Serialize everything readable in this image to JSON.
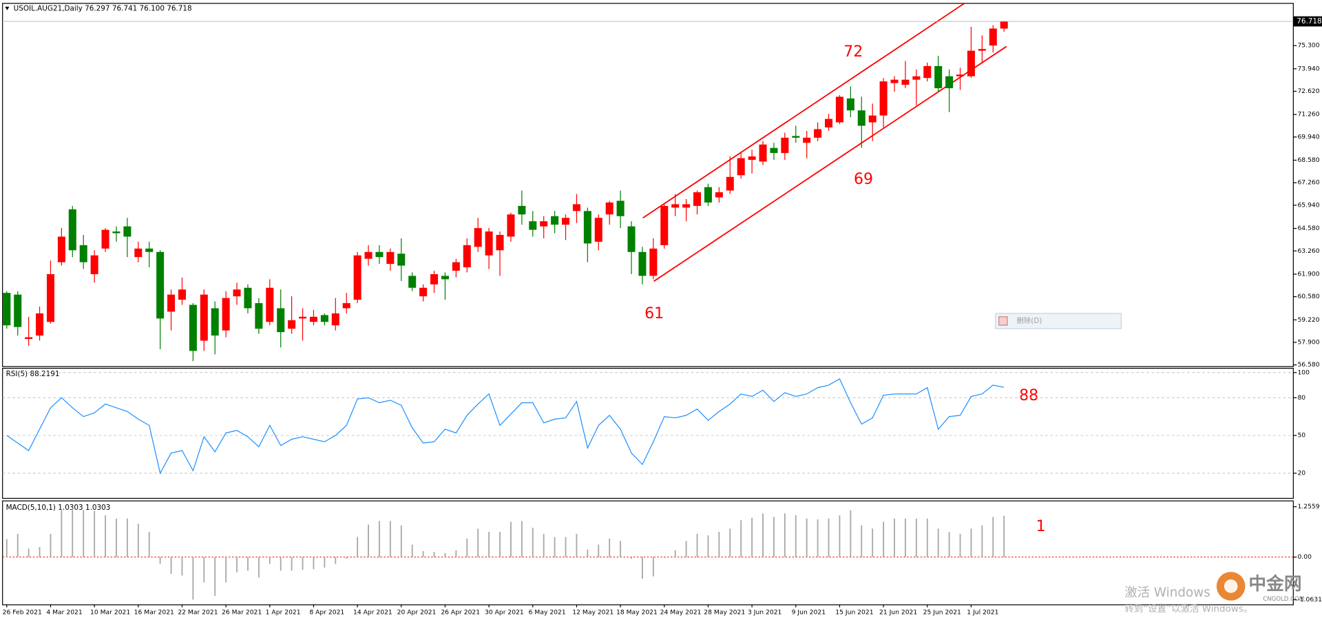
{
  "chart_data": [
    {
      "type": "candlestick",
      "title": "USOIL.AUG21,Daily  76.297 76.741 76.100 76.718",
      "categories": [
        "26 Feb 2021",
        null,
        null,
        null,
        "4 Mar 2021",
        null,
        null,
        null,
        "10 Mar 2021",
        null,
        null,
        null,
        "16 Mar 2021",
        null,
        null,
        null,
        "22 Mar 2021",
        null,
        null,
        null,
        "26 Mar 2021",
        null,
        null,
        null,
        "1 Apr 2021",
        null,
        null,
        null,
        "8 Apr 2021",
        null,
        null,
        null,
        "14 Apr 2021",
        null,
        null,
        null,
        "20 Apr 2021",
        null,
        null,
        null,
        "26 Apr 2021",
        null,
        null,
        null,
        "30 Apr 2021",
        null,
        null,
        null,
        "6 May 2021",
        null,
        null,
        null,
        "12 May 2021",
        null,
        null,
        null,
        "18 May 2021",
        null,
        null,
        null,
        "24 May 2021",
        null,
        null,
        null,
        "28 May 2021",
        null,
        null,
        null,
        "3 Jun 2021",
        null,
        null,
        null,
        "9 Jun 2021",
        null,
        null,
        null,
        "15 Jun 2021",
        null,
        null,
        null,
        "21 Jun 2021",
        null,
        null,
        null,
        "25 Jun 2021",
        null,
        null,
        null,
        "1 Jul 2021",
        null,
        null,
        null
      ],
      "open": [
        60.8,
        60.7,
        58.1,
        58.3,
        59.1,
        62.6,
        65.7,
        63.6,
        61.9,
        63.4,
        64.4,
        64.7,
        62.9,
        63.4,
        63.2,
        59.7,
        60.4,
        60.1,
        58.0,
        59.9,
        58.6,
        60.6,
        61.1,
        60.2,
        59.1,
        59.9,
        58.7,
        59.3,
        59.1,
        59.5,
        58.9,
        59.9,
        60.4,
        62.8,
        63.2,
        62.5,
        63.1,
        61.8,
        60.6,
        61.3,
        61.8,
        62.1,
        62.3,
        63.5,
        63.0,
        63.3,
        64.1,
        65.9,
        65.0,
        64.7,
        65.3,
        64.8,
        65.6,
        65.6,
        63.8,
        65.4,
        66.2,
        64.7,
        63.2,
        61.8,
        63.6,
        65.8,
        65.8,
        65.9,
        67.0,
        66.4,
        66.8,
        67.7,
        68.6,
        68.5,
        69.3,
        69.0,
        70.0,
        69.6,
        69.9,
        70.5,
        70.8,
        72.2,
        71.5,
        70.8,
        71.2,
        73.1,
        73.0,
        73.3,
        73.4,
        74.1,
        73.5,
        73.5,
        73.5,
        75.0,
        75.3,
        76.297
      ],
      "high": [
        60.9,
        60.9,
        59.4,
        60.0,
        62.7,
        64.6,
        65.9,
        64.2,
        63.3,
        64.6,
        64.7,
        65.2,
        63.8,
        63.8,
        63.3,
        61.0,
        61.7,
        60.2,
        61.0,
        60.3,
        60.9,
        61.4,
        61.3,
        60.5,
        61.6,
        61.0,
        60.6,
        59.9,
        59.8,
        59.6,
        60.5,
        60.8,
        63.2,
        63.6,
        63.6,
        63.4,
        64.0,
        62.0,
        61.3,
        62.1,
        62.0,
        62.8,
        64.0,
        65.2,
        64.6,
        64.4,
        65.5,
        66.8,
        65.6,
        65.3,
        65.6,
        65.4,
        66.6,
        65.8,
        65.4,
        66.2,
        66.8,
        65.0,
        63.5,
        64.0,
        66.0,
        66.6,
        66.3,
        66.8,
        67.2,
        67.0,
        68.8,
        69.0,
        69.2,
        69.7,
        69.6,
        70.2,
        70.6,
        70.3,
        70.8,
        71.3,
        72.4,
        72.9,
        72.3,
        71.9,
        73.4,
        73.5,
        74.4,
        73.9,
        74.3,
        74.7,
        73.9,
        74.0,
        76.4,
        75.9,
        76.5,
        76.741
      ],
      "low": [
        58.7,
        58.3,
        57.7,
        58.0,
        59.0,
        62.4,
        62.9,
        62.2,
        61.4,
        63.2,
        63.8,
        62.9,
        62.6,
        62.3,
        57.5,
        58.6,
        60.1,
        56.8,
        57.4,
        57.2,
        58.2,
        60.1,
        59.6,
        58.4,
        58.9,
        57.6,
        58.4,
        58.0,
        58.9,
        58.9,
        58.6,
        59.6,
        60.2,
        62.4,
        62.5,
        62.1,
        61.5,
        60.9,
        60.3,
        60.8,
        60.4,
        61.7,
        62.0,
        63.2,
        62.2,
        61.8,
        63.8,
        64.8,
        64.1,
        64.0,
        64.3,
        63.9,
        64.9,
        62.6,
        63.3,
        64.8,
        64.6,
        61.9,
        61.3,
        61.6,
        63.4,
        65.3,
        65.0,
        65.4,
        65.9,
        66.1,
        66.6,
        67.5,
        67.8,
        68.3,
        68.6,
        68.6,
        69.6,
        68.7,
        69.7,
        70.3,
        70.7,
        71.1,
        69.3,
        69.7,
        70.5,
        72.6,
        72.8,
        71.8,
        73.2,
        72.6,
        71.4,
        72.7,
        73.4,
        74.3,
        74.9,
        76.1
      ],
      "close": [
        58.9,
        58.8,
        58.2,
        59.6,
        61.9,
        64.1,
        63.3,
        62.6,
        63.0,
        64.5,
        64.3,
        64.1,
        63.4,
        63.2,
        59.3,
        60.7,
        61.0,
        57.4,
        60.7,
        58.3,
        60.5,
        61.0,
        59.9,
        58.7,
        61.1,
        58.5,
        59.2,
        59.4,
        59.4,
        59.1,
        59.6,
        60.2,
        63.0,
        63.2,
        62.9,
        63.2,
        62.4,
        61.1,
        61.1,
        61.9,
        61.6,
        62.6,
        63.6,
        64.6,
        64.4,
        64.2,
        65.4,
        65.4,
        64.5,
        65.0,
        64.8,
        65.2,
        66.0,
        63.7,
        65.2,
        66.1,
        65.3,
        63.2,
        61.8,
        63.4,
        65.9,
        66.0,
        66.0,
        66.7,
        66.1,
        66.7,
        67.6,
        68.7,
        68.8,
        69.5,
        69.0,
        69.9,
        69.9,
        69.9,
        70.4,
        71.0,
        72.3,
        71.5,
        70.6,
        71.2,
        73.2,
        73.3,
        73.3,
        73.5,
        74.1,
        72.8,
        72.8,
        73.6,
        75.0,
        75.1,
        76.3,
        76.718
      ],
      "up_color": "#ff0000",
      "down_color": "#008000",
      "ylim": [
        56.48,
        77.13
      ],
      "yticks": [
        {
          "value": 56.58,
          "label": "56.580"
        },
        {
          "value": 57.9,
          "label": "57.900"
        },
        {
          "value": 59.22,
          "label": "59.220"
        },
        {
          "value": 60.58,
          "label": "60.580"
        },
        {
          "value": 61.9,
          "label": "61.900"
        },
        {
          "value": 63.26,
          "label": "63.260"
        },
        {
          "value": 64.58,
          "label": "64.580"
        },
        {
          "value": 65.94,
          "label": "65.940"
        },
        {
          "value": 67.26,
          "label": "67.260"
        },
        {
          "value": 68.58,
          "label": "68.580"
        },
        {
          "value": 69.94,
          "label": "69.940"
        },
        {
          "value": 71.26,
          "label": "71.260"
        },
        {
          "value": 72.62,
          "label": "72.620"
        },
        {
          "value": 73.94,
          "label": "73.940"
        },
        {
          "value": 75.3,
          "label": "75.300"
        }
      ],
      "last_price": {
        "value": 76.718,
        "label": "76.718"
      },
      "grid": false,
      "annotations": [
        "72",
        "69",
        "61"
      ]
    },
    {
      "type": "line",
      "title": "RSI(5) 88.2191",
      "values": [
        50,
        44,
        38,
        55,
        72,
        80,
        72,
        65,
        68,
        75,
        72,
        69,
        63,
        58,
        20,
        36,
        38,
        22,
        49,
        37,
        52,
        54,
        49,
        41,
        58,
        42,
        47,
        49,
        47,
        45,
        50,
        58,
        79,
        80,
        76,
        78,
        74,
        56,
        44,
        45,
        55,
        52,
        66,
        75,
        83,
        58,
        67,
        76,
        76,
        60,
        63,
        64,
        77,
        40,
        58,
        66,
        55,
        36,
        27,
        45,
        65,
        64,
        66,
        71,
        62,
        69,
        75,
        83,
        81,
        86,
        77,
        84,
        81,
        83,
        88,
        90,
        95,
        76,
        59,
        64,
        82,
        83,
        83,
        83,
        88,
        55,
        65,
        66,
        81,
        83,
        90,
        88.2191
      ],
      "color": "#1e90ff",
      "ylim": [
        0,
        103.4
      ],
      "yticks": [
        20,
        50,
        80,
        100
      ],
      "grid": true,
      "annotations": [
        "88"
      ]
    },
    {
      "type": "bar",
      "title": "MACD(5,10,1) 1.0303 1.0303",
      "values": [
        0.45,
        0.58,
        0.21,
        0.25,
        0.58,
        1.19,
        1.21,
        1.17,
        1.15,
        1.04,
        0.96,
        0.96,
        0.83,
        0.63,
        -0.17,
        -0.42,
        -0.46,
        -1.06,
        -0.63,
        -0.97,
        -0.63,
        -0.38,
        -0.34,
        -0.51,
        -0.17,
        -0.34,
        -0.34,
        -0.32,
        -0.3,
        -0.26,
        -0.17,
        -0.04,
        0.5,
        0.81,
        0.9,
        0.9,
        0.79,
        0.31,
        0.15,
        0.13,
        0.1,
        0.17,
        0.46,
        0.71,
        0.63,
        0.63,
        0.88,
        0.9,
        0.73,
        0.58,
        0.5,
        0.5,
        0.58,
        0.19,
        0.31,
        0.46,
        0.4,
        -0.04,
        -0.54,
        -0.48,
        -0.02,
        0.17,
        0.4,
        0.58,
        0.54,
        0.63,
        0.71,
        0.92,
        0.98,
        1.09,
        1.0,
        1.09,
        1.04,
        0.96,
        0.94,
        0.96,
        1.04,
        1.17,
        0.79,
        0.71,
        0.88,
        0.96,
        0.96,
        0.96,
        0.96,
        0.71,
        0.63,
        0.58,
        0.71,
        0.79,
        1.0,
        1.0303
      ],
      "color": "#a8a8a8",
      "ylim": [
        -1.19,
        1.38
      ],
      "yticks": [
        -1.0631,
        {
          "value": 0,
          "label": "0.00"
        },
        1.2559
      ],
      "grid": false,
      "annotations": [
        "1"
      ]
    }
  ],
  "overlay": {
    "menu_item": "删除(D)",
    "watermark_title": "激活 Windows",
    "watermark_text": "转到“设置”以激活 Windows。",
    "logo": "中金网",
    "logo_sub": "CNGOLD.COM"
  }
}
